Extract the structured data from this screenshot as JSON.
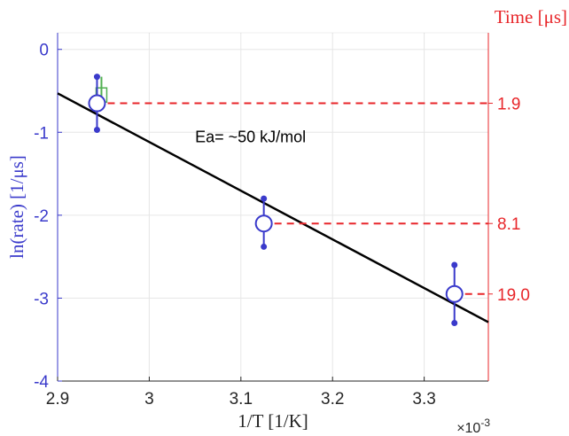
{
  "chart_data": {
    "type": "scatter",
    "xlabel": "1/T [1/K]",
    "x_exponent": "×10",
    "x_exponent_power": "-3",
    "ylabel_left": "ln(rate) [1/μs]",
    "ylabel_right": "Time [μs]",
    "xlim": [
      2.9,
      3.37
    ],
    "ylim": [
      -4,
      0.2
    ],
    "x_ticks": [
      "2.9",
      "3",
      "3.1",
      "3.2",
      "3.3"
    ],
    "x_tick_values": [
      2.9,
      3.0,
      3.1,
      3.2,
      3.3
    ],
    "y_ticks": [
      "0",
      "-1",
      "-2",
      "-3",
      "-4"
    ],
    "y_tick_values": [
      0,
      -1,
      -2,
      -3,
      -4
    ],
    "grid": true,
    "annotation": "Ea= ~50 kJ/mol",
    "colors": {
      "left_axis": "#3a3acb",
      "right_axis": "#e8262a",
      "fit_line": "#000000",
      "green_marker": "#52b052",
      "grid": "#e6e6e6"
    },
    "points": [
      {
        "x": 2.943,
        "y": -0.65,
        "y_upper": -0.33,
        "y_lower": -0.97
      },
      {
        "x": 3.125,
        "y": -2.1,
        "y_upper": -1.8,
        "y_lower": -2.38
      },
      {
        "x": 3.333,
        "y": -2.95,
        "y_upper": -2.6,
        "y_lower": -3.3
      }
    ],
    "green_point": {
      "x": 2.943,
      "y": -0.55,
      "y_upper": -0.33,
      "y_lower": -0.72
    },
    "fit_line": {
      "x": [
        2.9,
        3.37
      ],
      "y": [
        -0.53,
        -3.29
      ]
    },
    "time_labels": [
      {
        "label": "1.9",
        "y": -0.65,
        "x_start": 2.943
      },
      {
        "label": "8.1",
        "y": -2.1,
        "x_start": 3.125
      },
      {
        "label": "19.0",
        "y": -2.95,
        "x_start": 3.333
      }
    ]
  }
}
